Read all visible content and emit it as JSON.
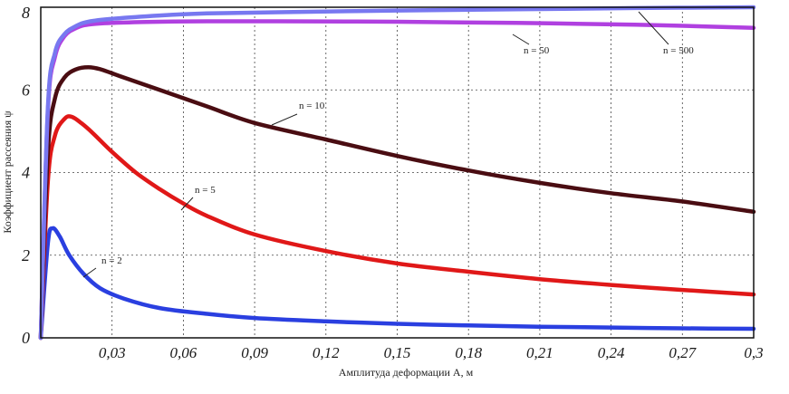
{
  "chart_data": {
    "type": "line",
    "xlabel": "Амплитуда деформации А, м",
    "ylabel": "Коэффициент рассеяния ψ",
    "xlim": [
      0,
      0.3
    ],
    "ylim": [
      0,
      8
    ],
    "x_ticks": [
      "0,03",
      "0,06",
      "0,09",
      "0,12",
      "0,15",
      "0,18",
      "0,21",
      "0,24",
      "0,27",
      "0,3"
    ],
    "y_ticks": [
      "0",
      "2",
      "4",
      "6",
      "8"
    ],
    "grid": "dotted",
    "series": [
      {
        "name": "n = 2",
        "color": "#2a3fe0",
        "x": [
          0,
          0.003,
          0.005,
          0.008,
          0.012,
          0.018,
          0.025,
          0.035,
          0.05,
          0.07,
          0.09,
          0.12,
          0.15,
          0.18,
          0.21,
          0.24,
          0.27,
          0.3
        ],
        "y": [
          0,
          2.3,
          2.65,
          2.45,
          2.0,
          1.55,
          1.2,
          0.95,
          0.72,
          0.58,
          0.48,
          0.4,
          0.34,
          0.3,
          0.27,
          0.25,
          0.23,
          0.22
        ]
      },
      {
        "name": "n = 5",
        "color": "#e01818",
        "x": [
          0,
          0.003,
          0.006,
          0.01,
          0.013,
          0.017,
          0.022,
          0.03,
          0.04,
          0.05,
          0.06,
          0.07,
          0.09,
          0.12,
          0.15,
          0.18,
          0.21,
          0.24,
          0.27,
          0.3
        ],
        "y": [
          0,
          3.8,
          4.9,
          5.3,
          5.35,
          5.2,
          4.95,
          4.5,
          4.0,
          3.6,
          3.25,
          2.95,
          2.5,
          2.1,
          1.8,
          1.6,
          1.42,
          1.28,
          1.16,
          1.05
        ]
      },
      {
        "name": "n = 10",
        "color": "#4a0d12",
        "x": [
          0,
          0.003,
          0.006,
          0.01,
          0.015,
          0.02,
          0.025,
          0.035,
          0.05,
          0.07,
          0.09,
          0.12,
          0.15,
          0.18,
          0.21,
          0.24,
          0.27,
          0.3
        ],
        "y": [
          0,
          4.5,
          5.8,
          6.3,
          6.5,
          6.55,
          6.5,
          6.3,
          6.0,
          5.6,
          5.2,
          4.8,
          4.4,
          4.05,
          3.75,
          3.5,
          3.3,
          3.05
        ]
      },
      {
        "name": "n = 50",
        "color": "#b040e0",
        "x": [
          0,
          0.003,
          0.006,
          0.01,
          0.015,
          0.02,
          0.03,
          0.05,
          0.07,
          0.1,
          0.15,
          0.2,
          0.25,
          0.3
        ],
        "y": [
          0,
          5.5,
          6.8,
          7.3,
          7.5,
          7.58,
          7.62,
          7.65,
          7.66,
          7.66,
          7.65,
          7.62,
          7.58,
          7.5
        ]
      },
      {
        "name": "n = 500",
        "color": "#7878f0",
        "x": [
          0,
          0.003,
          0.006,
          0.01,
          0.015,
          0.02,
          0.03,
          0.05,
          0.07,
          0.1,
          0.15,
          0.2,
          0.25,
          0.3
        ],
        "y": [
          0,
          5.6,
          6.9,
          7.35,
          7.55,
          7.65,
          7.72,
          7.8,
          7.85,
          7.88,
          7.92,
          7.95,
          7.98,
          8.0
        ]
      }
    ]
  }
}
